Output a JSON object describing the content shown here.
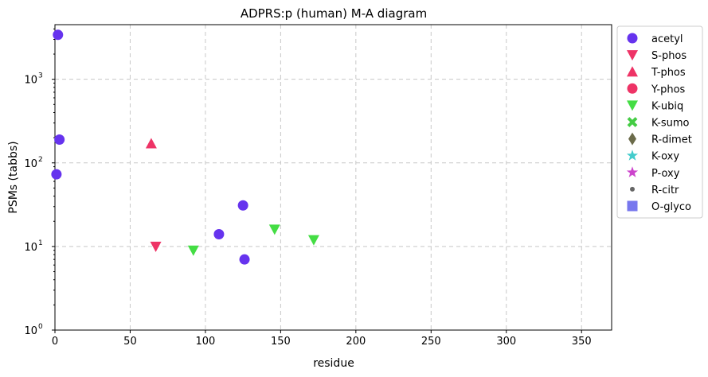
{
  "chart_data": {
    "type": "scatter",
    "title": "ADPRS:p (human) M-A diagram",
    "xlabel": "residue",
    "ylabel": "PSMs (tabbs)",
    "xlim": [
      0,
      370
    ],
    "ylim": [
      1,
      4500
    ],
    "yscale": "log",
    "grid": true,
    "legend_position": "outside-right",
    "x_ticks": [
      0,
      50,
      100,
      150,
      200,
      250,
      300,
      350
    ],
    "y_ticks": [
      {
        "value": 1,
        "base": "10",
        "exp": "0"
      },
      {
        "value": 10,
        "base": "10",
        "exp": "1"
      },
      {
        "value": 100,
        "base": "10",
        "exp": "2"
      },
      {
        "value": 1000,
        "base": "10",
        "exp": "3"
      }
    ],
    "series": [
      {
        "name": "acetyl",
        "marker": "circle",
        "color": "#6633ee",
        "points": [
          {
            "x": 2,
            "y": 3400
          },
          {
            "x": 3,
            "y": 190
          },
          {
            "x": 1,
            "y": 73
          },
          {
            "x": 125,
            "y": 31
          },
          {
            "x": 109,
            "y": 14
          },
          {
            "x": 126,
            "y": 7
          }
        ]
      },
      {
        "name": "S-phos",
        "marker": "triangle-down",
        "color": "#ee3366",
        "points": [
          {
            "x": 67,
            "y": 10
          }
        ]
      },
      {
        "name": "T-phos",
        "marker": "triangle-up",
        "color": "#ee3366",
        "points": [
          {
            "x": 64,
            "y": 170
          }
        ]
      },
      {
        "name": "Y-phos",
        "marker": "circle",
        "color": "#ee3366",
        "points": []
      },
      {
        "name": "K-ubiq",
        "marker": "triangle-down",
        "color": "#44dd44",
        "points": [
          {
            "x": 92,
            "y": 9
          },
          {
            "x": 146,
            "y": 16
          },
          {
            "x": 172,
            "y": 12
          }
        ]
      },
      {
        "name": "K-sumo",
        "marker": "x",
        "color": "#44cc44",
        "points": []
      },
      {
        "name": "R-dimet",
        "marker": "diamond",
        "color": "#6b6b4a",
        "points": []
      },
      {
        "name": "K-oxy",
        "marker": "star",
        "color": "#44cccc",
        "points": []
      },
      {
        "name": "P-oxy",
        "marker": "star",
        "color": "#cc44cc",
        "points": []
      },
      {
        "name": "R-citr",
        "marker": "small-circle",
        "color": "#666666",
        "points": []
      },
      {
        "name": "O-glyco",
        "marker": "square",
        "color": "#7777ee",
        "points": []
      }
    ]
  }
}
